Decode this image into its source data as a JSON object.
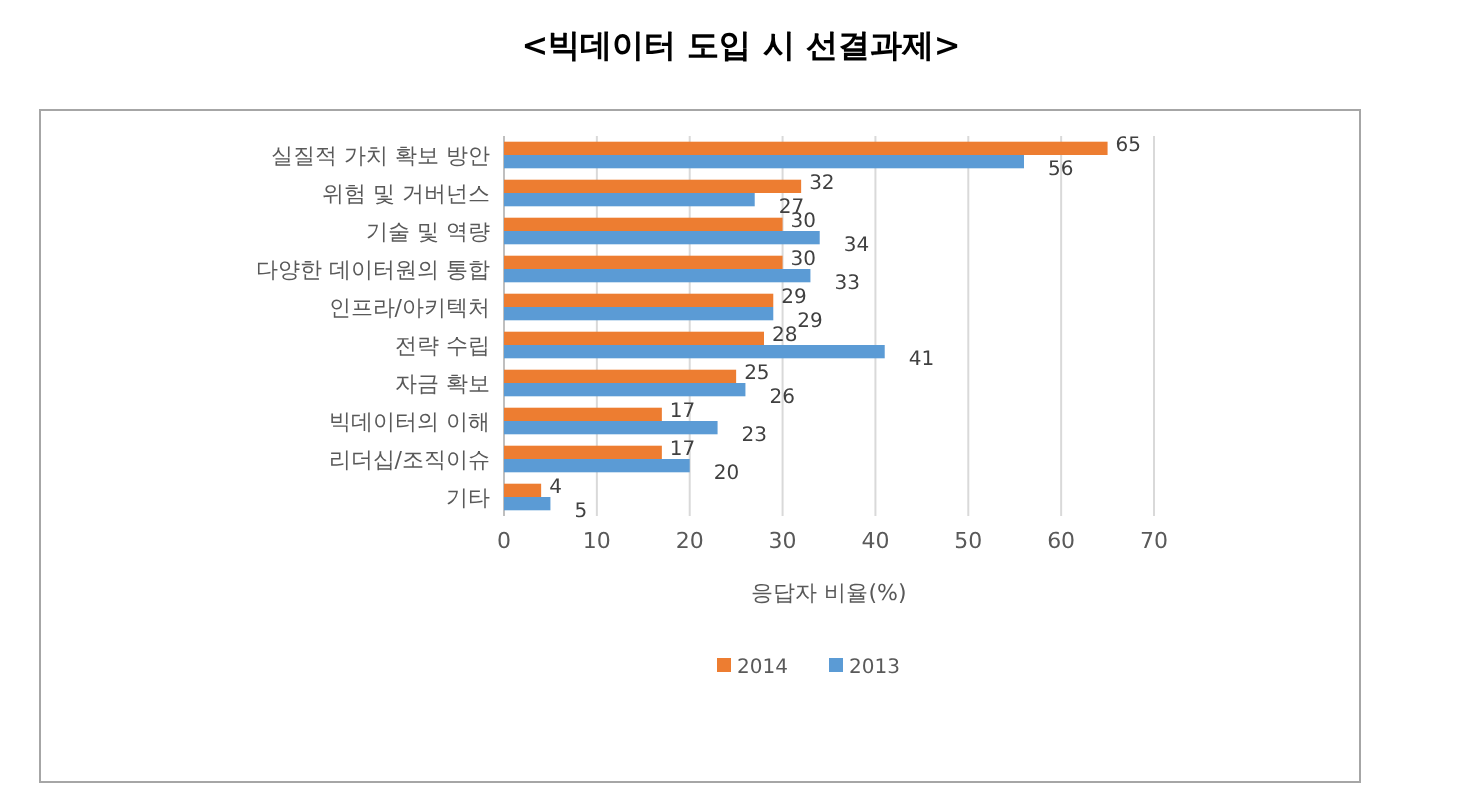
{
  "chart_data": {
    "type": "bar",
    "orientation": "horizontal",
    "title": "<빅데이터 도입 시 선결과제>",
    "xlabel": "응답자 비율(%)",
    "categories": [
      "실질적 가치 확보 방안",
      "위험 및 거버넌스",
      "기술 및 역량",
      "다양한 데이터원의 통합",
      "인프라/아키텍처",
      "전략 수립",
      "자금 확보",
      "빅데이터의 이해",
      "리더십/조직이슈",
      "기타"
    ],
    "series": [
      {
        "name": "2014",
        "color": "#ed7d31",
        "values": [
          65,
          32,
          30,
          30,
          29,
          28,
          25,
          17,
          17,
          4
        ]
      },
      {
        "name": "2013",
        "color": "#5b9bd5",
        "values": [
          56,
          27,
          34,
          33,
          29,
          41,
          26,
          23,
          20,
          5
        ]
      }
    ],
    "xlim": [
      0,
      70
    ],
    "xticks": [
      0,
      10,
      20,
      30,
      40,
      50,
      60,
      70
    ],
    "grid": "x",
    "legend": "bottom",
    "data_labels": true
  }
}
